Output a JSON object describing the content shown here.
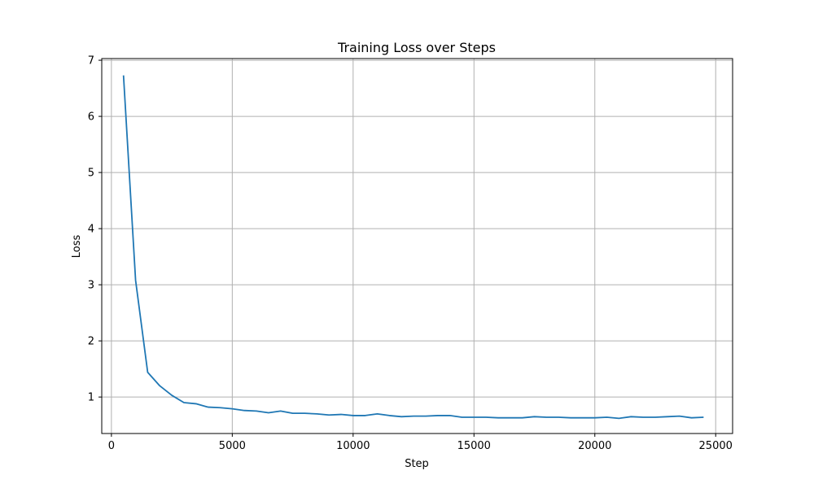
{
  "chart_data": {
    "type": "line",
    "title": "Training Loss over Steps",
    "xlabel": "Step",
    "ylabel": "Loss",
    "xlim": [
      -400,
      25700
    ],
    "ylim": [
      0.35,
      7.03
    ],
    "xticks": [
      0,
      5000,
      10000,
      15000,
      20000,
      25000
    ],
    "xtick_labels": [
      "0",
      "5000",
      "10000",
      "15000",
      "20000",
      "25000"
    ],
    "yticks": [
      1,
      2,
      3,
      4,
      5,
      6,
      7
    ],
    "ytick_labels": [
      "1",
      "2",
      "3",
      "4",
      "5",
      "6",
      "7"
    ],
    "grid": true,
    "line_color": "#1f77b4",
    "grid_color": "#b0b0b0",
    "series": [
      {
        "x": [
          500,
          1000,
          1500,
          2000,
          2500,
          3000,
          3500,
          4000,
          4500,
          5000,
          5500,
          6000,
          6500,
          7000,
          7500,
          8000,
          8500,
          9000,
          9500,
          10000,
          10500,
          11000,
          11500,
          12000,
          12500,
          13000,
          13500,
          14000,
          14500,
          15000,
          15500,
          16000,
          16500,
          17000,
          17500,
          18000,
          18500,
          19000,
          19500,
          20000,
          20500,
          21000,
          21500,
          22000,
          22500,
          23000,
          23500,
          24000,
          24500
        ],
        "y": [
          6.73,
          3.08,
          1.44,
          1.2,
          1.03,
          0.9,
          0.88,
          0.82,
          0.81,
          0.79,
          0.76,
          0.75,
          0.72,
          0.75,
          0.71,
          0.71,
          0.7,
          0.68,
          0.69,
          0.67,
          0.67,
          0.7,
          0.67,
          0.65,
          0.66,
          0.66,
          0.67,
          0.67,
          0.64,
          0.64,
          0.64,
          0.63,
          0.63,
          0.63,
          0.65,
          0.64,
          0.64,
          0.63,
          0.63,
          0.63,
          0.64,
          0.62,
          0.65,
          0.64,
          0.64,
          0.65,
          0.66,
          0.63,
          0.64
        ]
      }
    ]
  }
}
